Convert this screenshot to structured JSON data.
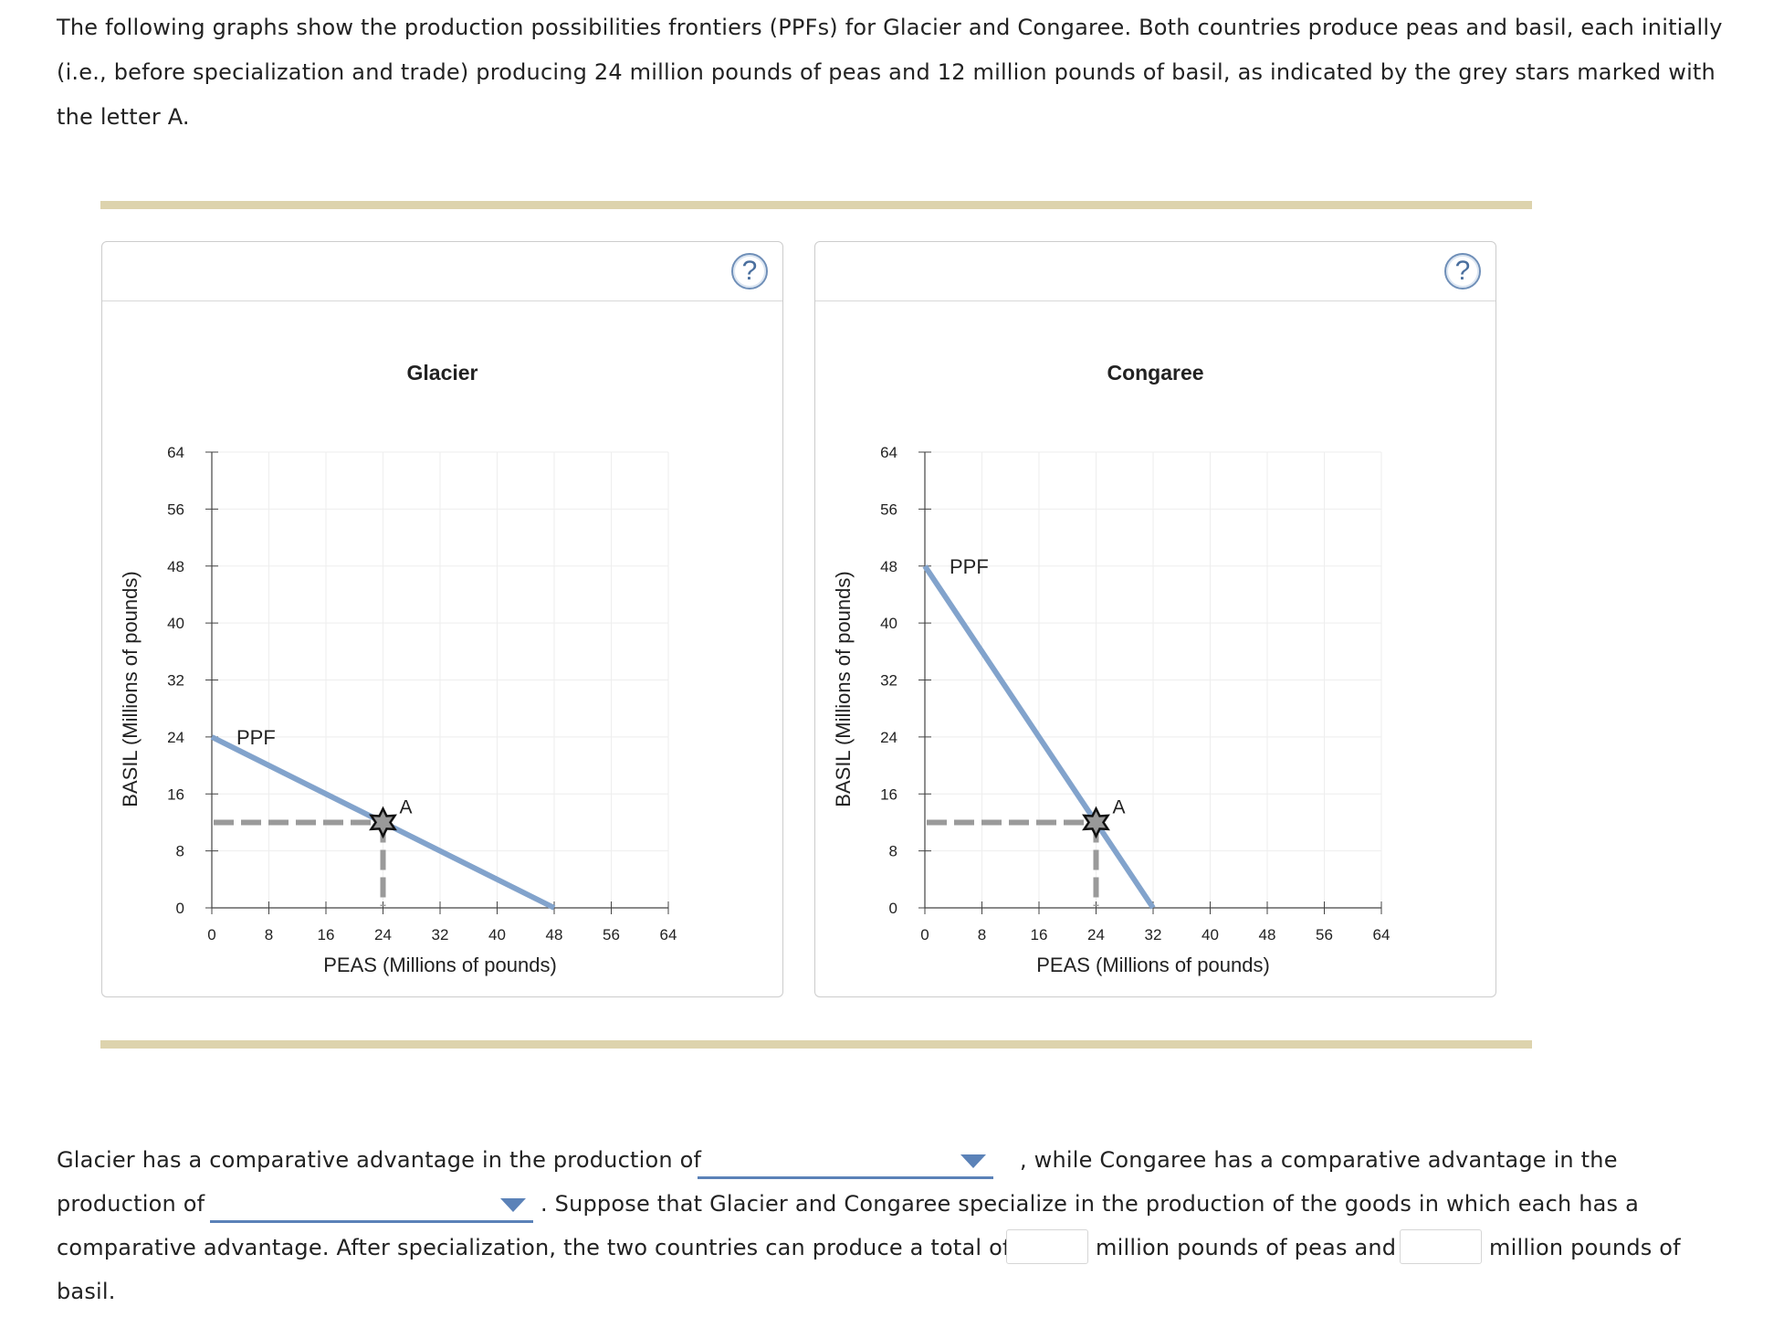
{
  "intro": "The following graphs show the production possibilities frontiers (PPFs) for Glacier and Congaree. Both countries produce peas and basil, each initially (i.e., before specialization and trade) producing 24 million pounds of peas and 12 million pounds of basil, as indicated by the grey stars marked with the letter A.",
  "help_label": "?",
  "colors": {
    "ppf": "#82a3cc",
    "guide": "#9a9a9a",
    "star": "#999999",
    "rule": "#ddd3ad",
    "accent": "#5b82b8"
  },
  "chart_data": [
    {
      "type": "line",
      "title": "Glacier",
      "xlabel": "PEAS (Millions of pounds)",
      "ylabel": "BASIL (Millions of pounds)",
      "xlim": [
        0,
        64
      ],
      "ylim": [
        0,
        64
      ],
      "x_ticks": [
        "0",
        "8",
        "16",
        "24",
        "32",
        "40",
        "48",
        "56",
        "64"
      ],
      "y_ticks": [
        "0",
        "8",
        "16",
        "24",
        "32",
        "40",
        "48",
        "56",
        "64"
      ],
      "series": [
        {
          "name": "PPF",
          "points": [
            [
              0,
              24
            ],
            [
              48,
              0
            ]
          ]
        }
      ],
      "point": {
        "label": "A",
        "x": 24,
        "y": 12
      }
    },
    {
      "type": "line",
      "title": "Congaree",
      "xlabel": "PEAS (Millions of pounds)",
      "ylabel": "BASIL (Millions of pounds)",
      "xlim": [
        0,
        64
      ],
      "ylim": [
        0,
        64
      ],
      "x_ticks": [
        "0",
        "8",
        "16",
        "24",
        "32",
        "40",
        "48",
        "56",
        "64"
      ],
      "y_ticks": [
        "0",
        "8",
        "16",
        "24",
        "32",
        "40",
        "48",
        "56",
        "64"
      ],
      "series": [
        {
          "name": "PPF",
          "points": [
            [
              0,
              48
            ],
            [
              32,
              0
            ]
          ]
        }
      ],
      "point": {
        "label": "A",
        "x": 24,
        "y": 12
      }
    }
  ],
  "question": {
    "p1": "Glacier has a comparative advantage in the production of",
    "p2": ", while Congaree has a comparative advantage in the",
    "p3": "production of",
    "p4": ". Suppose that Glacier and Congaree specialize in the production of the goods in which each has a",
    "p5": "comparative advantage. After specialization, the two countries can produce a total of",
    "p6": "million pounds of peas and",
    "p7": "million pounds of",
    "p8": "basil.",
    "dropdown1_value": "",
    "dropdown2_value": "",
    "input_peas_value": "",
    "input_basil_value": ""
  }
}
